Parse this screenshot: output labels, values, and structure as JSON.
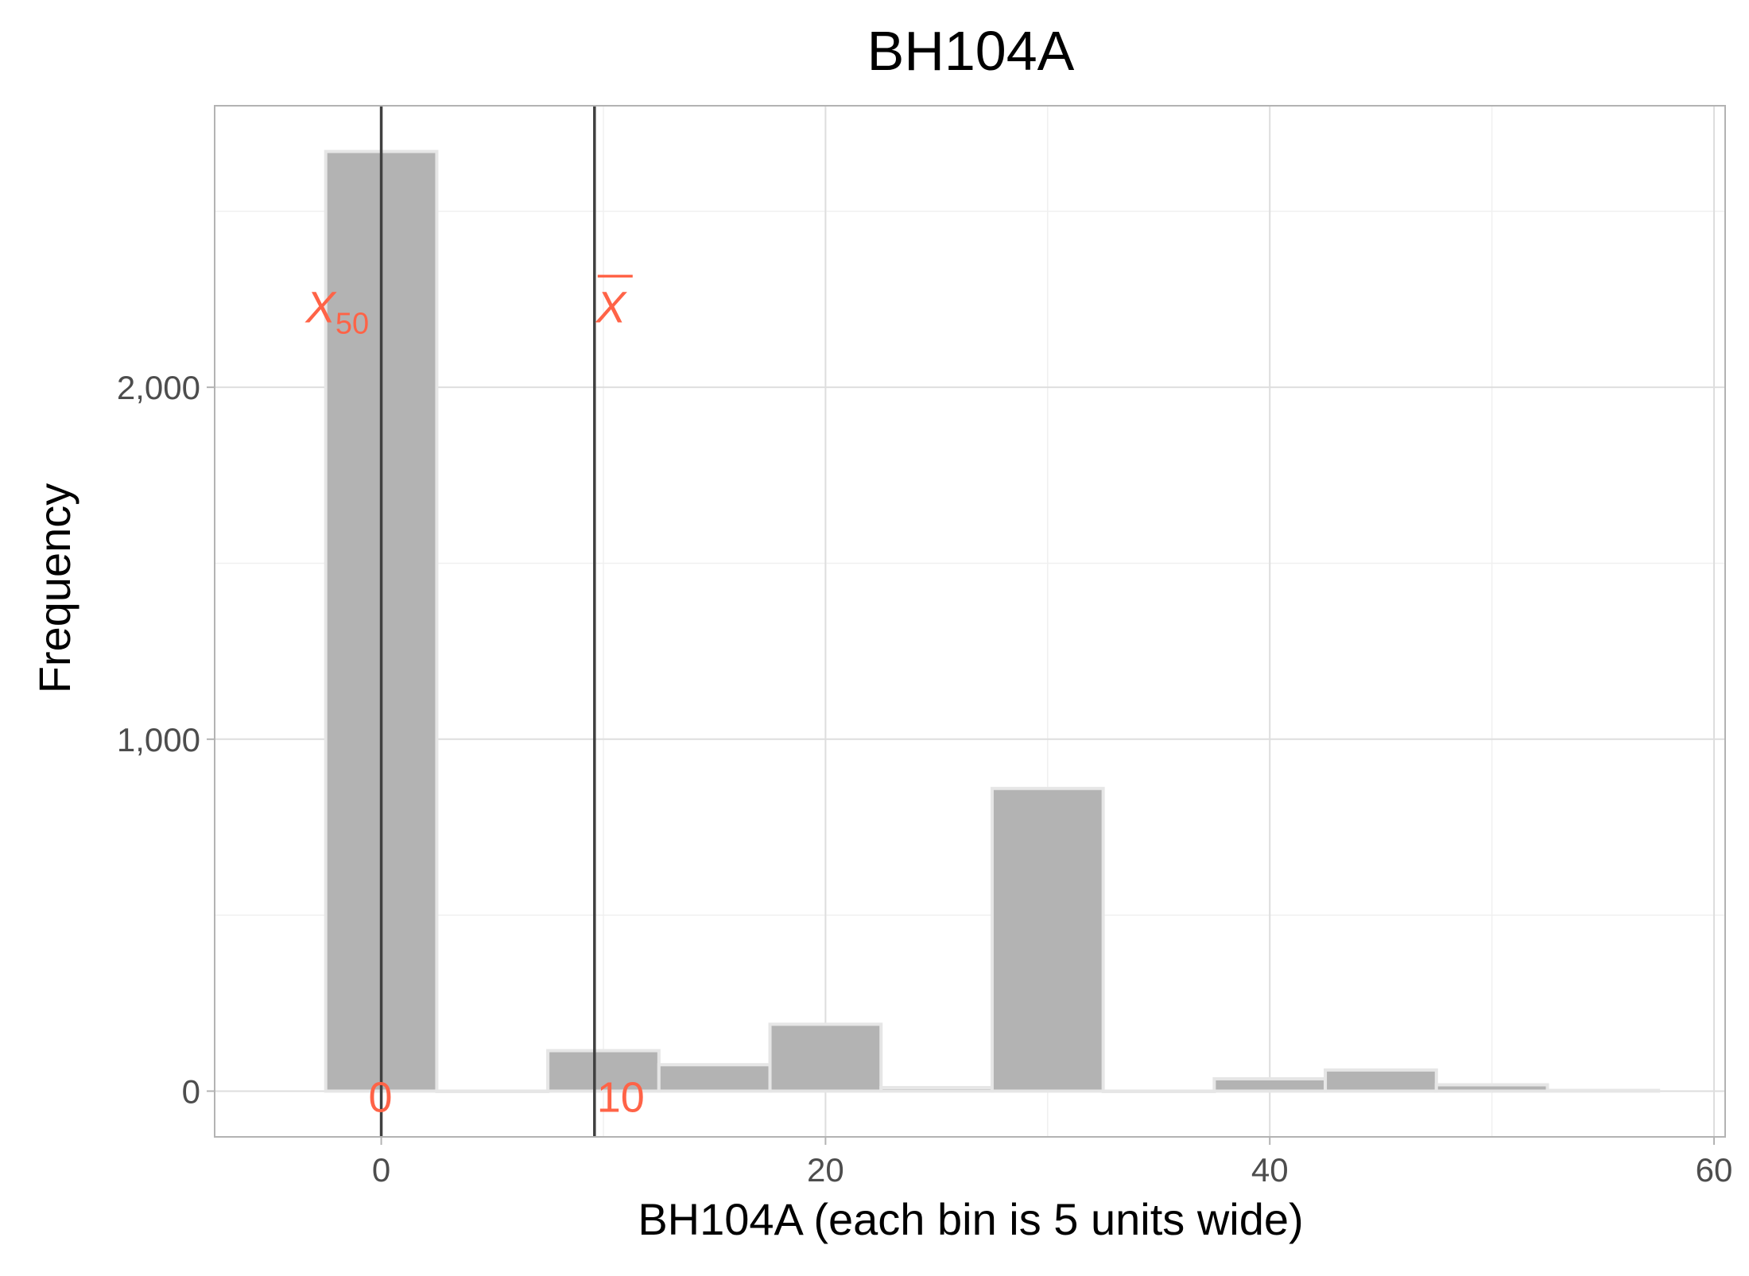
{
  "chart_data": {
    "type": "bar",
    "title": "BH104A",
    "xlabel": "BH104A (each bin is 5 units wide)",
    "ylabel": "Frequency",
    "xlim": [
      -7.5,
      60.5
    ],
    "ylim": [
      -130,
      2800
    ],
    "x_ticks": [
      0,
      20,
      40,
      60
    ],
    "x_tick_labels": [
      "0",
      "20",
      "40",
      "60"
    ],
    "y_ticks": [
      0,
      1000,
      2000
    ],
    "y_tick_labels": [
      "0",
      "1,000",
      "2,000"
    ],
    "bin_width": 5,
    "bins": [
      {
        "center": 0,
        "count": 2670
      },
      {
        "center": 5,
        "count": 0
      },
      {
        "center": 10,
        "count": 115
      },
      {
        "center": 15,
        "count": 75
      },
      {
        "center": 20,
        "count": 190
      },
      {
        "center": 25,
        "count": 10
      },
      {
        "center": 30,
        "count": 860
      },
      {
        "center": 35,
        "count": 0
      },
      {
        "center": 40,
        "count": 35
      },
      {
        "center": 45,
        "count": 60
      },
      {
        "center": 50,
        "count": 18
      },
      {
        "center": 55,
        "count": 2
      }
    ],
    "reference_lines": [
      {
        "x": 0,
        "symbol": "X",
        "subscript": "50",
        "value_label": "0"
      },
      {
        "x": 9.6,
        "symbol": "X",
        "overline": true,
        "value_label": "10"
      }
    ],
    "grid": true,
    "colors": {
      "bar_fill": "#b3b3b3",
      "bar_stroke": "#e6e6e6",
      "annotation": "#ff6347",
      "reference_line": "#404040",
      "grid_major": "#dedede",
      "grid_minor": "#f0f0f0",
      "panel_border": "#b3b3b3"
    }
  }
}
